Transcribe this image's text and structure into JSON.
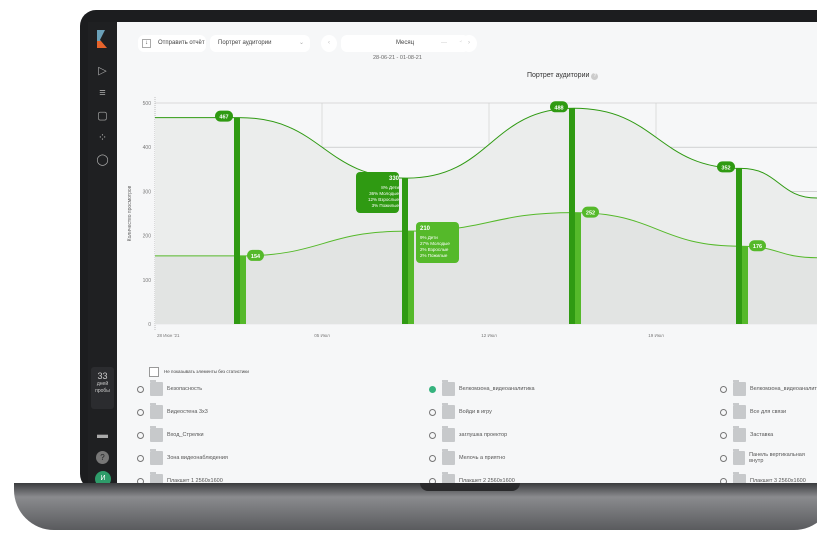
{
  "toolbar": {
    "send_report": "Отправить отчёт",
    "report_type": "Портрет аудитории",
    "period": "Месяц",
    "date_range": "28-06-21 - 01-08-21"
  },
  "sidebar": {
    "trial_days": "33",
    "trial_label": "дней пробы",
    "avatar": "И",
    "icons": [
      "play-icon",
      "filter-icon",
      "document-icon",
      "loader-icon",
      "user-icon",
      "monitor-icon",
      "help-icon"
    ]
  },
  "chart_data": {
    "type": "line",
    "title": "Портрет аудитории",
    "ylabel": "Количество просмотров",
    "ylim": [
      0,
      500
    ],
    "yticks": [
      "0",
      "100",
      "200",
      "300",
      "400",
      "500"
    ],
    "xticks": [
      "28 Июн '21",
      "05 Июл",
      "12 Июл",
      "19 Июл"
    ],
    "grid": true,
    "colors": {
      "upper": "#2f9a12",
      "lower": "#55b92a"
    },
    "upper": [
      467,
      330,
      488,
      352
    ],
    "lower": [
      154,
      210,
      252,
      176
    ],
    "tooltips": [
      {
        "value": "330",
        "lines": [
          "8% Дети",
          "36% Молодые",
          "12% Взрослые",
          "3% Пожилые"
        ]
      },
      {
        "value": "210",
        "lines": [
          "9% Дети",
          "27% Молодые",
          "2% Взрослые",
          "2% Пожилые"
        ]
      }
    ]
  },
  "filter": {
    "hide_empty": "Не показывать элементы без статистики"
  },
  "items": [
    [
      "Безопасность",
      "Видеостена 3x3",
      "Вход_Стрелки",
      "Зона видеонаблюдения",
      "Плакшет 1 2560x1600"
    ],
    [
      "Велкомзона_видеоаналитика",
      "Войди в игру",
      "заглушка проектор",
      "Мелочь а приятно",
      "Плакшет 2 2560x1600"
    ],
    [
      "Велкомзона_видеоаналитика",
      "Все для связи",
      "Заставка",
      "Панель вертикальная внутр",
      "Плакшет 3 2560x1600"
    ]
  ],
  "selected_item": "Велкомзона_видеоаналитика"
}
